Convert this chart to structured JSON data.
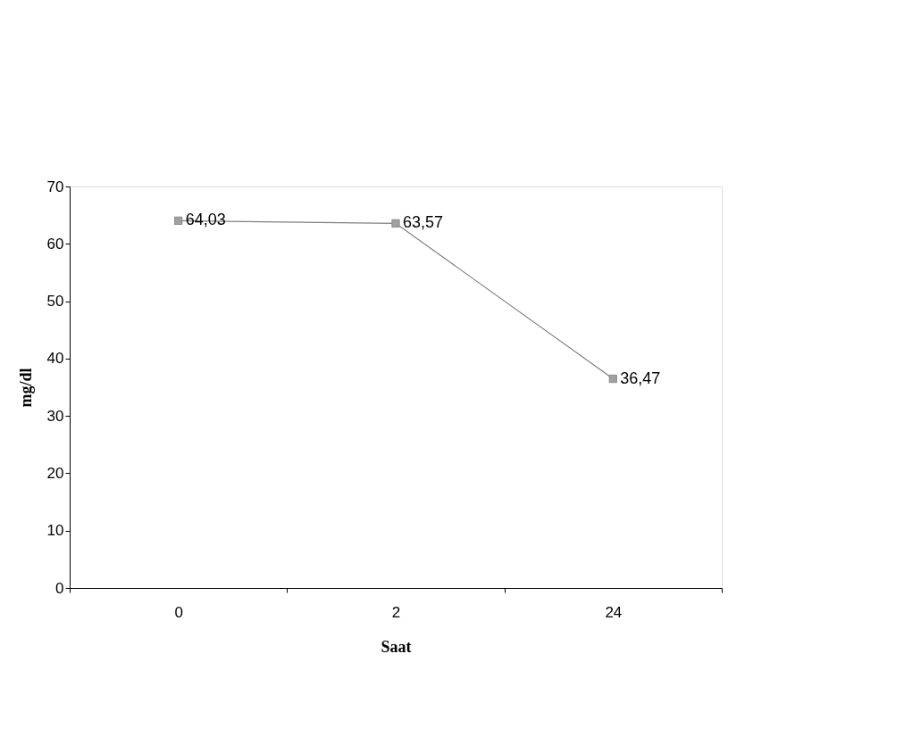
{
  "chart_data": {
    "type": "line",
    "xlabel": "Saat",
    "ylabel": "mg/dl",
    "categories": [
      "0",
      "2",
      "24"
    ],
    "series": [
      {
        "color": "#808080",
        "values": [
          64.03,
          63.57,
          36.47
        ],
        "value_labels": [
          "64,03",
          "63,57",
          "36,47"
        ]
      }
    ],
    "ylim": [
      0,
      70
    ],
    "yticks": [
      0,
      10,
      20,
      30,
      40,
      50,
      60,
      70
    ],
    "grid": false,
    "marker": "square",
    "line_style": "solid"
  }
}
